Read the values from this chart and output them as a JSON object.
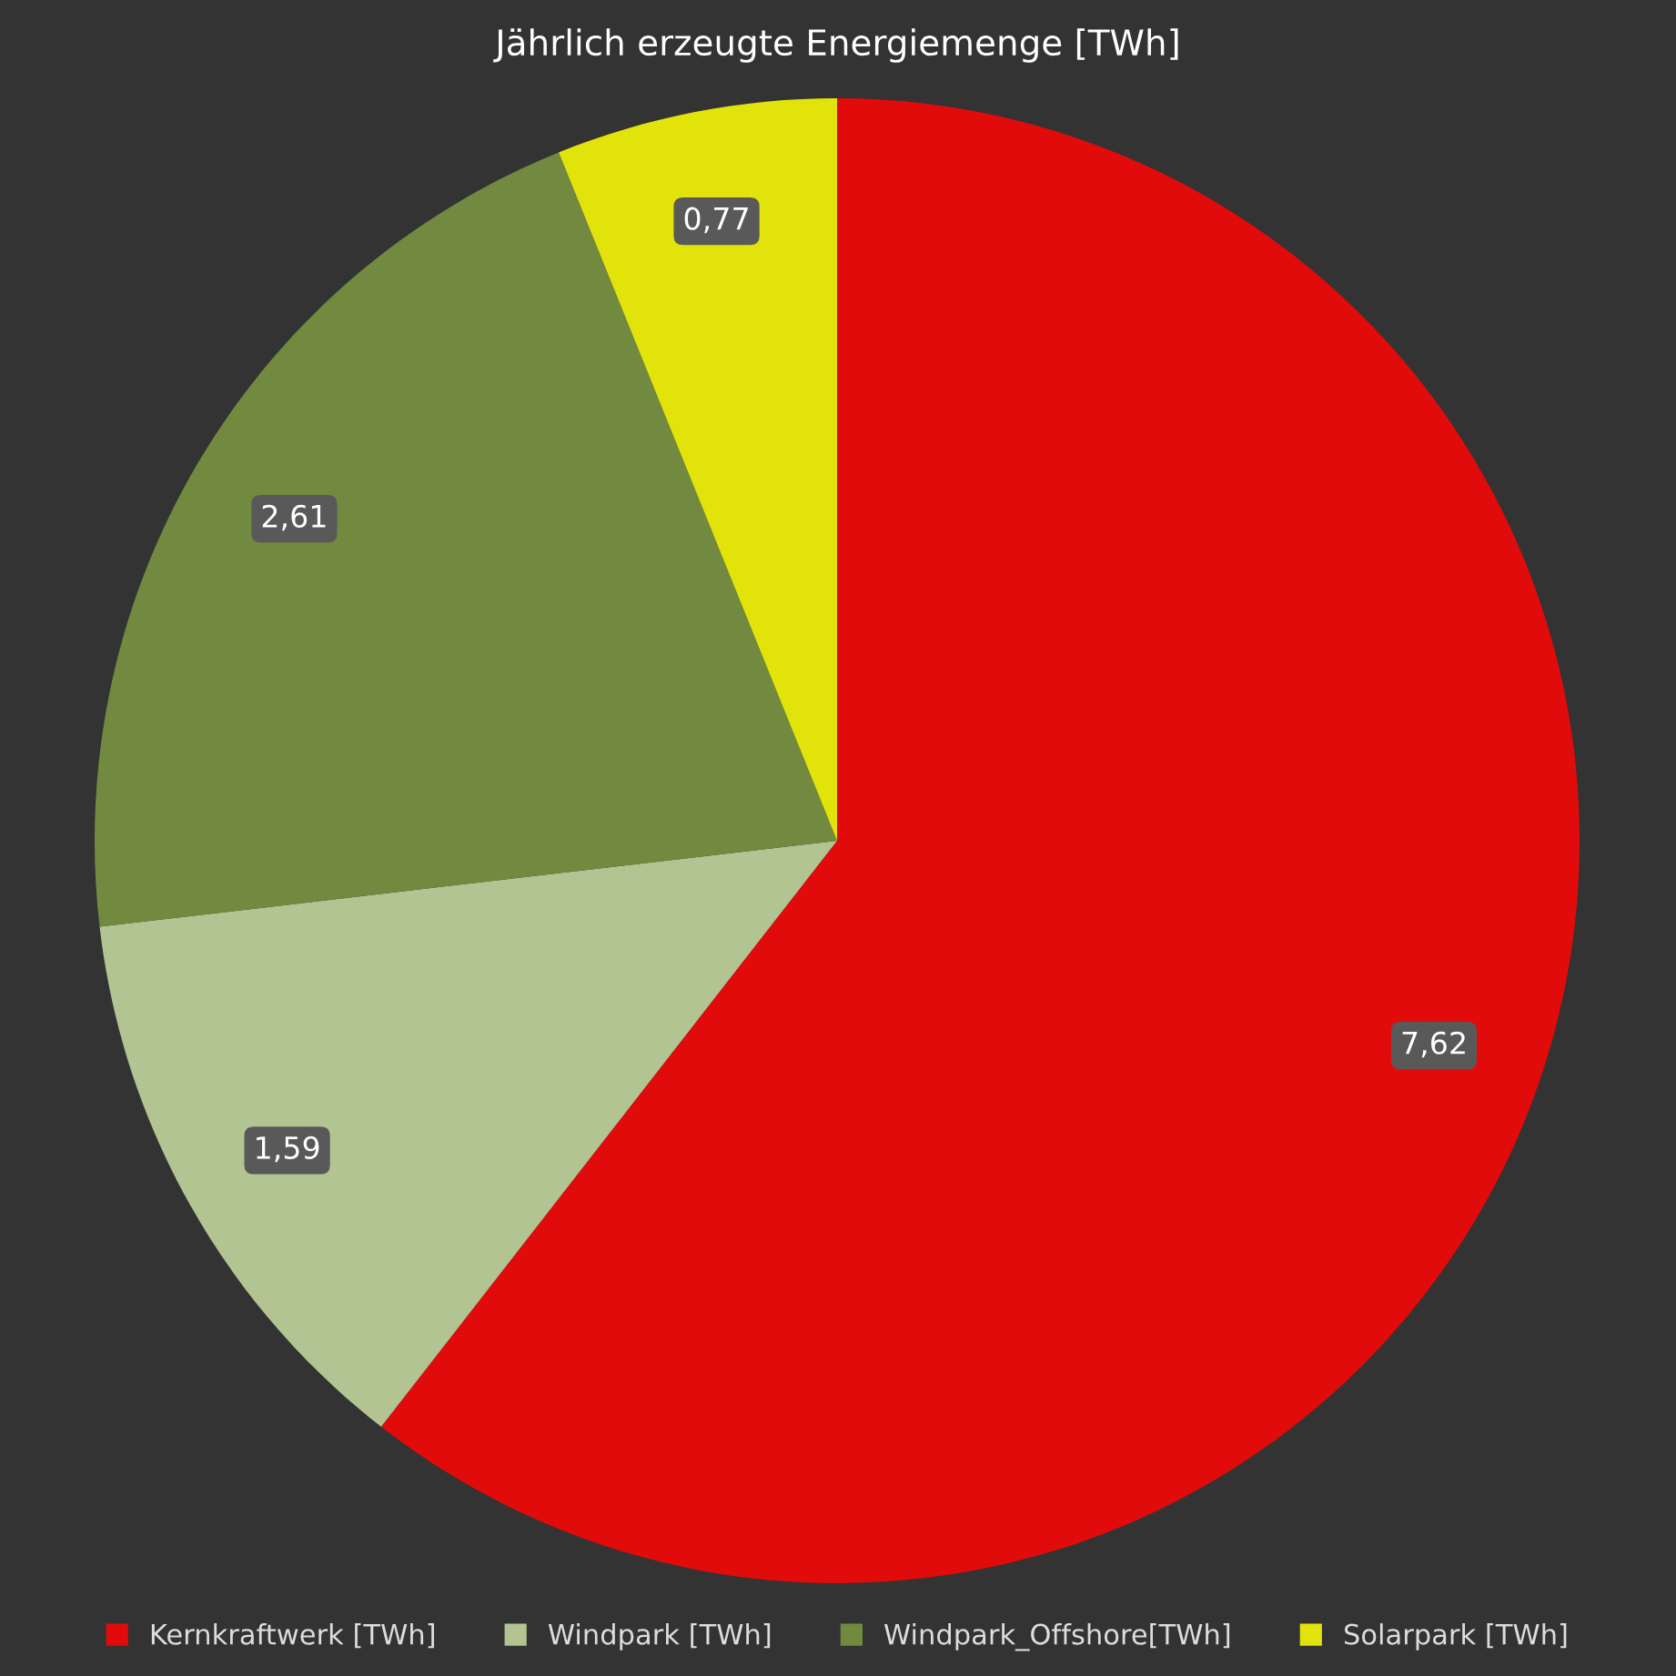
{
  "chart_data": {
    "type": "pie",
    "title": "Jährlich erzeugte Energiemenge [TWh]",
    "categories": [
      "Kernkraftwerk [TWh]",
      "Windpark [TWh]",
      "Windpark_Offshore[TWh]",
      "Solarpark [TWh]"
    ],
    "values": [
      7.62,
      1.59,
      2.61,
      0.77
    ],
    "colors": [
      "#e20b0b",
      "#b3c493",
      "#728a3f",
      "#e3e30c"
    ],
    "value_labels": [
      "7,62",
      "1,59",
      "2,61",
      "0,77"
    ],
    "legend": "bottom"
  }
}
